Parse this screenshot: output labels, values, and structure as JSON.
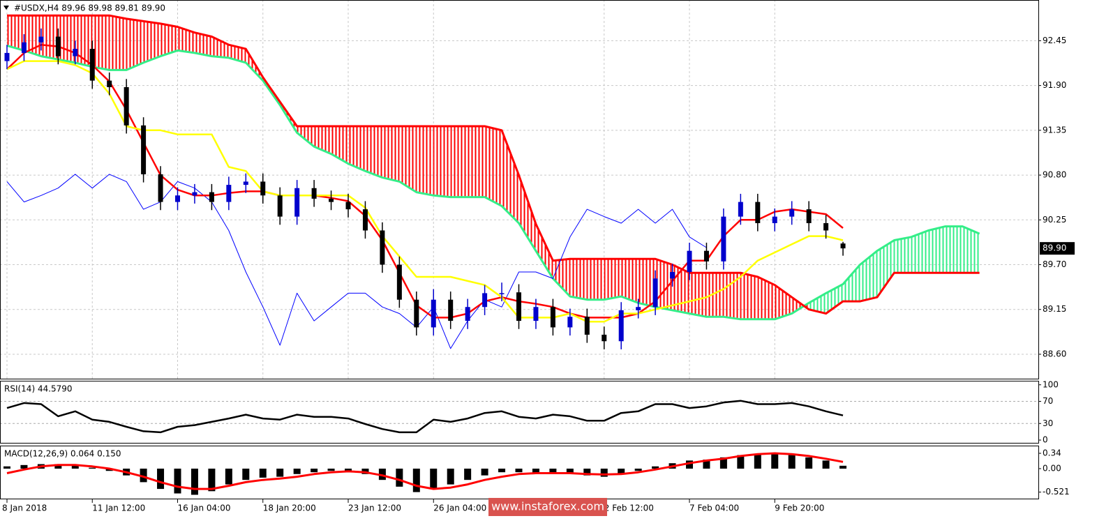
{
  "chart_data": [
    {
      "type": "candlestick",
      "title": "#USDX,H4  89.96 89.98 89.81 89.90",
      "categories": [
        "8 Jan 2018",
        null,
        null,
        null,
        null,
        "11 Jan 12:00",
        null,
        null,
        null,
        null,
        "16 Jan 04:00",
        null,
        null,
        null,
        null,
        "18 Jan 20:00",
        null,
        null,
        null,
        null,
        "23 Jan 12:00",
        null,
        null,
        null,
        null,
        "26 Jan 04:00",
        null,
        null,
        null,
        null,
        null,
        null,
        null,
        null,
        null,
        "2 Feb 12:00",
        null,
        null,
        null,
        null,
        "7 Feb 04:00",
        null,
        null,
        null,
        null,
        "9 Feb 20:00",
        null,
        null,
        null,
        null
      ],
      "open": [
        92.2,
        92.3,
        92.43,
        92.5,
        92.26,
        92.35,
        91.96,
        91.88,
        91.41,
        90.81,
        90.47,
        90.55,
        90.59,
        90.47,
        90.68,
        90.72,
        90.55,
        90.29,
        90.64,
        90.51,
        90.47,
        90.38,
        90.12,
        89.7,
        89.27,
        88.93,
        89.27,
        89.01,
        89.18,
        89.35,
        89.36,
        89.01,
        89.18,
        88.93,
        89.06,
        88.84,
        88.76,
        89.14,
        89.18,
        89.53,
        89.61,
        89.87,
        89.74,
        90.29,
        90.47,
        90.21,
        90.29,
        90.38,
        90.21,
        89.96
      ],
      "high": [
        92.4,
        92.53,
        92.6,
        92.6,
        92.45,
        92.45,
        92.06,
        91.98,
        91.51,
        90.91,
        90.65,
        90.69,
        90.69,
        90.78,
        90.82,
        90.82,
        90.65,
        90.74,
        90.74,
        90.61,
        90.57,
        90.48,
        90.22,
        89.8,
        89.37,
        89.4,
        89.37,
        89.28,
        89.45,
        89.48,
        89.46,
        89.28,
        89.28,
        89.16,
        89.16,
        88.94,
        89.24,
        89.28,
        89.63,
        89.71,
        89.97,
        89.97,
        90.39,
        90.57,
        90.57,
        90.39,
        90.48,
        90.48,
        90.31,
        89.98
      ],
      "low": [
        92.1,
        92.2,
        92.33,
        92.16,
        92.16,
        91.86,
        91.78,
        91.31,
        90.71,
        90.37,
        90.37,
        90.45,
        90.37,
        90.37,
        90.58,
        90.45,
        90.19,
        90.19,
        90.41,
        90.37,
        90.28,
        90.02,
        89.6,
        89.17,
        88.83,
        88.83,
        88.91,
        88.91,
        89.08,
        89.25,
        88.91,
        88.91,
        88.83,
        88.83,
        88.74,
        88.66,
        88.66,
        89.04,
        89.08,
        89.43,
        89.51,
        89.64,
        89.64,
        90.19,
        90.11,
        90.11,
        90.19,
        90.11,
        90.02,
        89.81
      ],
      "close": [
        92.3,
        92.43,
        92.5,
        92.26,
        92.35,
        91.96,
        91.88,
        91.41,
        90.81,
        90.47,
        90.55,
        90.59,
        90.47,
        90.68,
        90.72,
        90.55,
        90.29,
        90.64,
        90.51,
        90.47,
        90.38,
        90.12,
        89.7,
        89.27,
        88.93,
        89.27,
        89.01,
        89.18,
        89.35,
        89.35,
        89.01,
        89.18,
        88.93,
        89.06,
        88.84,
        88.76,
        89.14,
        89.18,
        89.53,
        89.61,
        89.87,
        89.74,
        90.29,
        90.47,
        90.21,
        90.29,
        90.38,
        90.21,
        90.12,
        89.9
      ],
      "up_color": "#0000cc",
      "down_color": "#000000",
      "lines": [
        {
          "color": "#ff0000",
          "values": [
            92.1,
            92.3,
            92.4,
            92.38,
            92.3,
            92.15,
            91.95,
            91.6,
            91.2,
            90.8,
            90.62,
            90.55,
            90.55,
            90.58,
            90.6,
            90.6,
            90.55,
            90.55,
            90.55,
            90.52,
            90.48,
            90.3,
            90.0,
            89.6,
            89.2,
            89.05,
            89.05,
            89.1,
            89.25,
            89.3,
            89.25,
            89.22,
            89.18,
            89.1,
            89.05,
            89.05,
            89.05,
            89.1,
            89.25,
            89.5,
            89.75,
            89.75,
            90.05,
            90.25,
            90.25,
            90.35,
            90.38,
            90.35,
            90.32,
            90.15
          ]
        },
        {
          "color": "#ffff00",
          "values": [
            92.1,
            92.2,
            92.2,
            92.2,
            92.15,
            92.05,
            91.8,
            91.4,
            91.35,
            91.35,
            91.3,
            91.3,
            91.3,
            90.9,
            90.85,
            90.6,
            90.55,
            90.55,
            90.55,
            90.55,
            90.55,
            90.4,
            90.05,
            89.8,
            89.55,
            89.55,
            89.55,
            89.5,
            89.45,
            89.3,
            89.05,
            89.05,
            89.05,
            89.1,
            89.0,
            89.0,
            89.1,
            89.1,
            89.15,
            89.2,
            89.25,
            89.3,
            89.4,
            89.55,
            89.75,
            89.85,
            89.95,
            90.05,
            90.05,
            90.0
          ]
        }
      ],
      "lagging": {
        "color": "#0000ff",
        "values": [
          90.72,
          90.47,
          90.55,
          90.64,
          90.81,
          90.64,
          90.81,
          90.72,
          90.38,
          90.47,
          90.72,
          90.64,
          90.47,
          90.12,
          89.61,
          89.18,
          88.71,
          89.35,
          89.01,
          89.18,
          89.35,
          89.35,
          89.18,
          89.1,
          88.93,
          89.18,
          88.67,
          89.01,
          89.27,
          89.18,
          89.61,
          89.61,
          89.53,
          90.04,
          90.38,
          90.29,
          90.21,
          90.38,
          90.21,
          90.38,
          90.04,
          89.91
        ]
      },
      "cloud": {
        "span_a_color": "#33ee88",
        "span_b_color": "#ff0000",
        "span_a": [
          92.39,
          92.33,
          92.26,
          92.22,
          92.18,
          92.13,
          92.09,
          92.09,
          92.18,
          92.26,
          92.33,
          92.3,
          92.26,
          92.24,
          92.18,
          91.96,
          91.66,
          91.32,
          91.15,
          91.06,
          90.94,
          90.85,
          90.77,
          90.72,
          90.59,
          90.55,
          90.53,
          90.53,
          90.53,
          90.42,
          90.21,
          89.87,
          89.53,
          89.31,
          89.27,
          89.27,
          89.31,
          89.23,
          89.18,
          89.14,
          89.1,
          89.06,
          89.06,
          89.03,
          89.03,
          89.03,
          89.1,
          89.23,
          89.35,
          89.46,
          89.7,
          89.87,
          90.0,
          90.04,
          90.12,
          90.17,
          90.17,
          90.08
        ],
        "span_b": [
          92.76,
          92.76,
          92.76,
          92.76,
          92.76,
          92.76,
          92.76,
          92.72,
          92.69,
          92.66,
          92.62,
          92.55,
          92.5,
          92.4,
          92.35,
          92.0,
          91.7,
          91.4,
          91.4,
          91.4,
          91.4,
          91.4,
          91.4,
          91.4,
          91.4,
          91.4,
          91.4,
          91.4,
          91.4,
          91.35,
          90.8,
          90.2,
          89.75,
          89.77,
          89.77,
          89.77,
          89.77,
          89.77,
          89.77,
          89.7,
          89.6,
          89.6,
          89.6,
          89.6,
          89.55,
          89.45,
          89.3,
          89.15,
          89.1,
          89.25,
          89.25,
          89.3,
          89.6,
          89.6,
          89.6,
          89.6,
          89.6,
          89.6
        ]
      },
      "current_price": {
        "value": 89.9,
        "label": "89.90"
      },
      "ylim": [
        88.3,
        92.95
      ],
      "yticks": [
        {
          "value": 92.45,
          "label": "92.45"
        },
        {
          "value": 91.9,
          "label": "91.90"
        },
        {
          "value": 91.35,
          "label": "91.35"
        },
        {
          "value": 90.8,
          "label": "90.80"
        },
        {
          "value": 90.25,
          "label": "90.25"
        },
        {
          "value": 89.7,
          "label": "89.70"
        },
        {
          "value": 89.15,
          "label": "89.15"
        },
        {
          "value": 88.6,
          "label": "88.60"
        }
      ],
      "grid": true
    },
    {
      "type": "line",
      "title": "RSI(14) 44.5790",
      "color": "#000000",
      "values": [
        58,
        67,
        65,
        43,
        52,
        37,
        33,
        24,
        16,
        14,
        24,
        27,
        33,
        39,
        46,
        39,
        37,
        46,
        42,
        42,
        39,
        29,
        20,
        14,
        14,
        37,
        33,
        39,
        49,
        52,
        42,
        39,
        46,
        43,
        35,
        35,
        49,
        52,
        65,
        65,
        58,
        61,
        68,
        71,
        65,
        65,
        67,
        61,
        52,
        44.58
      ],
      "ylim": [
        -5,
        106
      ],
      "yticks": [
        100,
        70,
        30,
        0
      ],
      "levels": [
        1,
        2
      ]
    },
    {
      "type": "macd",
      "title": "MACD(12,26,9) 0.064 0.150",
      "hist_color": "#000000",
      "signal_color": "#ff0000",
      "histogram": [
        0.05,
        0.08,
        0.1,
        0.1,
        0.08,
        0.02,
        -0.05,
        -0.15,
        -0.3,
        -0.45,
        -0.55,
        -0.58,
        -0.5,
        -0.35,
        -0.25,
        -0.2,
        -0.18,
        -0.12,
        -0.08,
        -0.05,
        -0.05,
        -0.12,
        -0.25,
        -0.4,
        -0.52,
        -0.45,
        -0.35,
        -0.25,
        -0.15,
        -0.08,
        -0.08,
        -0.1,
        -0.12,
        -0.12,
        -0.15,
        -0.18,
        -0.12,
        -0.05,
        0.05,
        0.12,
        0.18,
        0.2,
        0.25,
        0.3,
        0.32,
        0.34,
        0.3,
        0.25,
        0.18,
        0.064
      ],
      "signal": [
        -0.1,
        -0.02,
        0.05,
        0.08,
        0.08,
        0.05,
        0.0,
        -0.08,
        -0.18,
        -0.3,
        -0.4,
        -0.45,
        -0.45,
        -0.38,
        -0.3,
        -0.25,
        -0.22,
        -0.18,
        -0.12,
        -0.08,
        -0.06,
        -0.08,
        -0.15,
        -0.25,
        -0.38,
        -0.45,
        -0.42,
        -0.35,
        -0.25,
        -0.18,
        -0.12,
        -0.1,
        -0.1,
        -0.1,
        -0.12,
        -0.13,
        -0.12,
        -0.08,
        -0.02,
        0.05,
        0.12,
        0.18,
        0.22,
        0.28,
        0.32,
        0.34,
        0.32,
        0.28,
        0.22,
        0.15
      ],
      "ylim": [
        -0.665,
        0.495
      ],
      "yticks": [
        0.34,
        {
          "value": 0,
          "label": "0.00"
        },
        -0.521
      ]
    }
  ],
  "watermark": "www.instaforex.com"
}
